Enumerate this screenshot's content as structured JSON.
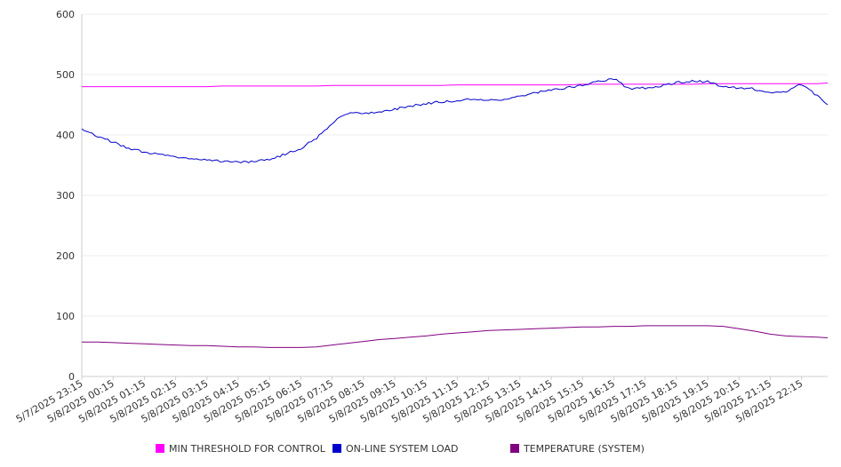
{
  "chart_data": {
    "type": "line",
    "title": "",
    "xlabel": "",
    "ylabel": "",
    "ylim": [
      0,
      600
    ],
    "yticks": [
      0,
      100,
      200,
      300,
      400,
      500,
      600
    ],
    "grid": true,
    "legend_position": "bottom",
    "x_tick_labels": [
      "5/7/2025 23:15",
      "5/8/2025 00:15",
      "5/8/2025 01:15",
      "5/8/2025 02:15",
      "5/8/2025 03:15",
      "5/8/2025 04:15",
      "5/8/2025 05:15",
      "5/8/2025 06:15",
      "5/8/2025 07:15",
      "5/8/2025 08:15",
      "5/8/2025 09:15",
      "5/8/2025 10:15",
      "5/8/2025 11:15",
      "5/8/2025 12:15",
      "5/8/2025 13:15",
      "5/8/2025 14:15",
      "5/8/2025 15:15",
      "5/8/2025 16:15",
      "5/8/2025 17:15",
      "5/8/2025 18:15",
      "5/8/2025 19:15",
      "5/8/2025 20:15",
      "5/8/2025 21:15",
      "5/8/2025 22:15"
    ],
    "x": [
      "5/7/2025 23:15",
      "5/7/2025 23:45",
      "5/8/2025 00:15",
      "5/8/2025 00:45",
      "5/8/2025 01:15",
      "5/8/2025 01:45",
      "5/8/2025 02:15",
      "5/8/2025 02:45",
      "5/8/2025 03:15",
      "5/8/2025 03:45",
      "5/8/2025 04:15",
      "5/8/2025 04:45",
      "5/8/2025 05:15",
      "5/8/2025 05:45",
      "5/8/2025 06:15",
      "5/8/2025 06:45",
      "5/8/2025 07:15",
      "5/8/2025 07:45",
      "5/8/2025 08:15",
      "5/8/2025 08:45",
      "5/8/2025 09:15",
      "5/8/2025 09:45",
      "5/8/2025 10:15",
      "5/8/2025 10:45",
      "5/8/2025 11:15",
      "5/8/2025 11:45",
      "5/8/2025 12:15",
      "5/8/2025 12:45",
      "5/8/2025 13:15",
      "5/8/2025 13:45",
      "5/8/2025 14:15",
      "5/8/2025 14:45",
      "5/8/2025 15:15",
      "5/8/2025 15:45",
      "5/8/2025 16:15",
      "5/8/2025 16:45",
      "5/8/2025 17:15",
      "5/8/2025 17:45",
      "5/8/2025 18:15",
      "5/8/2025 18:45",
      "5/8/2025 19:15",
      "5/8/2025 19:45",
      "5/8/2025 20:15",
      "5/8/2025 20:45",
      "5/8/2025 21:15",
      "5/8/2025 21:45",
      "5/8/2025 22:15",
      "5/8/2025 22:45",
      "5/8/2025 23:05"
    ],
    "series": [
      {
        "name": "MIN THRESHOLD FOR CONTROL",
        "color": "#ff00ff",
        "values": [
          480,
          480,
          480,
          480,
          480,
          480,
          480,
          480,
          480,
          481,
          481,
          481,
          481,
          481,
          481,
          481,
          482,
          482,
          482,
          482,
          482,
          482,
          482,
          482,
          483,
          483,
          483,
          483,
          483,
          483,
          483,
          483,
          484,
          484,
          484,
          484,
          484,
          484,
          484,
          484,
          485,
          485,
          485,
          485,
          485,
          485,
          485,
          485,
          486
        ]
      },
      {
        "name": "ON-LINE SYSTEM LOAD",
        "color": "#0000cc",
        "values": [
          410,
          398,
          388,
          378,
          372,
          367,
          364,
          361,
          359,
          356,
          355,
          356,
          360,
          368,
          378,
          395,
          420,
          436,
          436,
          437,
          443,
          448,
          452,
          455,
          457,
          460,
          458,
          459,
          464,
          470,
          475,
          478,
          483,
          488,
          493,
          476,
          478,
          481,
          487,
          489,
          488,
          480,
          478,
          476,
          471,
          472,
          484,
          465,
          450
        ]
      },
      {
        "name": "TEMPERATURE (SYSTEM)",
        "color": "#800080",
        "values": [
          57,
          57,
          56,
          55,
          54,
          53,
          52,
          51,
          51,
          50,
          49,
          49,
          48,
          48,
          48,
          49,
          52,
          55,
          58,
          61,
          63,
          65,
          67,
          70,
          72,
          74,
          76,
          77,
          78,
          79,
          80,
          81,
          82,
          82,
          83,
          83,
          84,
          84,
          84,
          84,
          84,
          83,
          79,
          75,
          70,
          67,
          66,
          65,
          64
        ]
      }
    ]
  }
}
